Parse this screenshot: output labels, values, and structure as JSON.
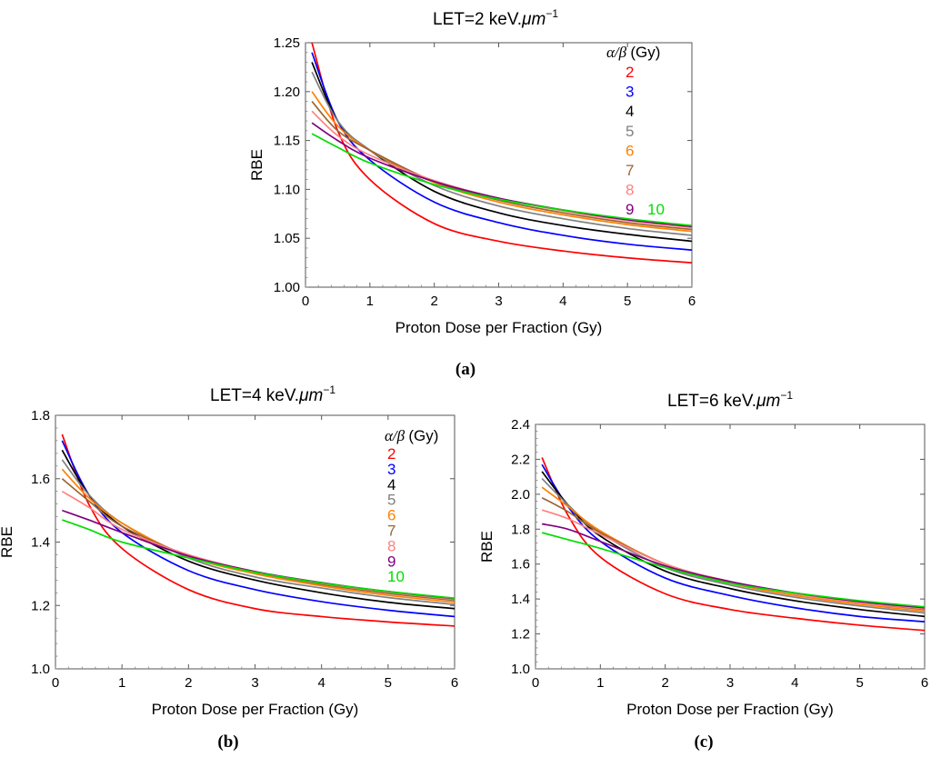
{
  "chart_data": [
    {
      "panel": "(a)",
      "type": "line",
      "title_prefix": "LET=2 keV.",
      "title_unit": "μm",
      "title_exp": "−1",
      "xlabel": "Proton Dose per Fraction (Gy)",
      "ylabel": "RBE",
      "xlim": [
        0,
        6
      ],
      "ylim": [
        1.0,
        1.25
      ],
      "xticks": [
        "0",
        "1",
        "2",
        "3",
        "4",
        "5",
        "6"
      ],
      "yticks": [
        "1.00",
        "1.05",
        "1.10",
        "1.15",
        "1.20",
        "1.25"
      ],
      "grid": false,
      "legend_position": "top-right",
      "legend_title": "α/β (Gy)",
      "x": [
        0.1,
        0.5,
        1,
        2,
        3,
        4,
        5,
        6
      ],
      "series": [
        {
          "name": "2",
          "color": "#ff0000",
          "values": [
            1.25,
            1.16,
            1.11,
            1.065,
            1.047,
            1.037,
            1.03,
            1.025
          ]
        },
        {
          "name": "3",
          "color": "#0000ff",
          "values": [
            1.24,
            1.17,
            1.13,
            1.087,
            1.066,
            1.053,
            1.044,
            1.038
          ]
        },
        {
          "name": "4",
          "color": "#000000",
          "values": [
            1.23,
            1.17,
            1.14,
            1.098,
            1.076,
            1.063,
            1.054,
            1.047
          ]
        },
        {
          "name": "5",
          "color": "#808080",
          "values": [
            1.22,
            1.17,
            1.14,
            1.104,
            1.083,
            1.07,
            1.06,
            1.053
          ]
        },
        {
          "name": "6",
          "color": "#ff8000",
          "values": [
            1.2,
            1.165,
            1.14,
            1.107,
            1.087,
            1.074,
            1.064,
            1.057
          ]
        },
        {
          "name": "7",
          "color": "#996633",
          "values": [
            1.19,
            1.16,
            1.14,
            1.108,
            1.089,
            1.076,
            1.066,
            1.059
          ]
        },
        {
          "name": "8",
          "color": "#ff8080",
          "values": [
            1.18,
            1.155,
            1.135,
            1.109,
            1.091,
            1.078,
            1.068,
            1.061
          ]
        },
        {
          "name": "9",
          "color": "#800080",
          "values": [
            1.168,
            1.15,
            1.132,
            1.108,
            1.091,
            1.079,
            1.069,
            1.062
          ]
        },
        {
          "name": "10",
          "color": "#00dd00",
          "values": [
            1.157,
            1.143,
            1.127,
            1.105,
            1.09,
            1.079,
            1.07,
            1.063
          ]
        }
      ]
    },
    {
      "panel": "(b)",
      "type": "line",
      "title_prefix": "LET=4 keV.",
      "title_unit": "μm",
      "title_exp": "−1",
      "xlabel": "Proton Dose per Fraction (Gy)",
      "ylabel": "RBE",
      "xlim": [
        0,
        6
      ],
      "ylim": [
        1.0,
        1.8
      ],
      "xticks": [
        "0",
        "1",
        "2",
        "3",
        "4",
        "5",
        "6"
      ],
      "yticks": [
        "1.0",
        "1.2",
        "1.4",
        "1.6",
        "1.8"
      ],
      "grid": false,
      "legend_position": "top-right",
      "legend_title": "α/β (Gy)",
      "x": [
        0.1,
        0.5,
        1,
        2,
        3,
        4,
        5,
        6
      ],
      "series": [
        {
          "name": "2",
          "color": "#ff0000",
          "values": [
            1.74,
            1.52,
            1.38,
            1.25,
            1.19,
            1.165,
            1.148,
            1.135
          ]
        },
        {
          "name": "3",
          "color": "#0000ff",
          "values": [
            1.72,
            1.55,
            1.43,
            1.31,
            1.25,
            1.212,
            1.185,
            1.165
          ]
        },
        {
          "name": "4",
          "color": "#000000",
          "values": [
            1.69,
            1.55,
            1.45,
            1.34,
            1.28,
            1.24,
            1.21,
            1.19
          ]
        },
        {
          "name": "5",
          "color": "#808080",
          "values": [
            1.66,
            1.55,
            1.46,
            1.35,
            1.29,
            1.255,
            1.225,
            1.203
          ]
        },
        {
          "name": "6",
          "color": "#ff8000",
          "values": [
            1.63,
            1.54,
            1.46,
            1.355,
            1.3,
            1.262,
            1.232,
            1.21
          ]
        },
        {
          "name": "7",
          "color": "#996633",
          "values": [
            1.6,
            1.53,
            1.45,
            1.358,
            1.305,
            1.267,
            1.238,
            1.216
          ]
        },
        {
          "name": "8",
          "color": "#ff8080",
          "values": [
            1.56,
            1.51,
            1.44,
            1.36,
            1.307,
            1.27,
            1.242,
            1.219
          ]
        },
        {
          "name": "9",
          "color": "#800080",
          "values": [
            1.5,
            1.47,
            1.43,
            1.356,
            1.307,
            1.272,
            1.244,
            1.222
          ]
        },
        {
          "name": "10",
          "color": "#00dd00",
          "values": [
            1.47,
            1.44,
            1.4,
            1.35,
            1.305,
            1.271,
            1.244,
            1.223
          ]
        }
      ]
    },
    {
      "panel": "(c)",
      "type": "line",
      "title_prefix": "LET=6 keV.",
      "title_unit": "μm",
      "title_exp": "−1",
      "xlabel": "Proton Dose per Fraction (Gy)",
      "ylabel": "RBE",
      "xlim": [
        0,
        6
      ],
      "ylim": [
        1.0,
        2.4
      ],
      "xticks": [
        "0",
        "1",
        "2",
        "3",
        "4",
        "5",
        "6"
      ],
      "yticks": [
        "1.0",
        "1.2",
        "1.4",
        "1.6",
        "1.8",
        "2.0",
        "2.2",
        "2.4"
      ],
      "grid": false,
      "legend_position": "none",
      "x": [
        0.1,
        0.5,
        1,
        2,
        3,
        4,
        5,
        6
      ],
      "series": [
        {
          "name": "2",
          "color": "#ff0000",
          "values": [
            2.21,
            1.88,
            1.64,
            1.43,
            1.34,
            1.29,
            1.25,
            1.22
          ]
        },
        {
          "name": "3",
          "color": "#0000ff",
          "values": [
            2.17,
            1.93,
            1.73,
            1.52,
            1.42,
            1.35,
            1.3,
            1.27
          ]
        },
        {
          "name": "4",
          "color": "#000000",
          "values": [
            2.13,
            1.94,
            1.76,
            1.56,
            1.46,
            1.39,
            1.34,
            1.3
          ]
        },
        {
          "name": "5",
          "color": "#808080",
          "values": [
            2.09,
            1.94,
            1.78,
            1.58,
            1.48,
            1.41,
            1.36,
            1.32
          ]
        },
        {
          "name": "6",
          "color": "#ff8000",
          "values": [
            2.04,
            1.93,
            1.79,
            1.6,
            1.49,
            1.42,
            1.37,
            1.33
          ]
        },
        {
          "name": "7",
          "color": "#996633",
          "values": [
            1.98,
            1.9,
            1.78,
            1.6,
            1.5,
            1.43,
            1.38,
            1.34
          ]
        },
        {
          "name": "8",
          "color": "#ff8080",
          "values": [
            1.91,
            1.86,
            1.77,
            1.6,
            1.5,
            1.43,
            1.38,
            1.345
          ]
        },
        {
          "name": "9",
          "color": "#800080",
          "values": [
            1.83,
            1.8,
            1.73,
            1.59,
            1.5,
            1.435,
            1.385,
            1.35
          ]
        },
        {
          "name": "10",
          "color": "#00dd00",
          "values": [
            1.78,
            1.74,
            1.69,
            1.58,
            1.49,
            1.435,
            1.39,
            1.355
          ]
        }
      ]
    }
  ]
}
